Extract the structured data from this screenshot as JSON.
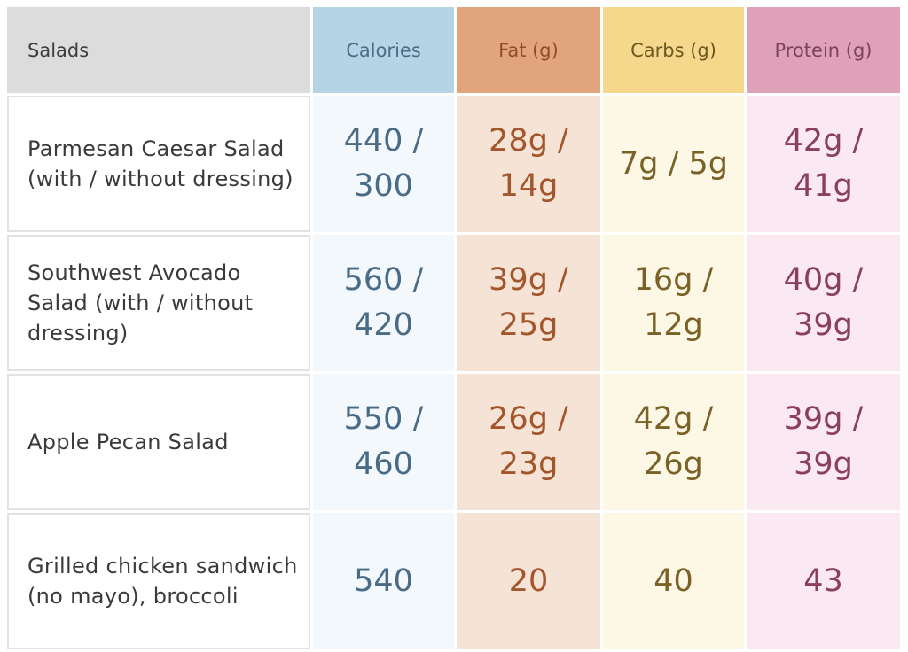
{
  "table": {
    "headers": {
      "name": "Salads",
      "calories": "Calories",
      "fat": "Fat (g)",
      "carbs": "Carbs (g)",
      "protein": "Protein (g)"
    },
    "rows": [
      {
        "name": "Parmesan Caesar Salad (with / without dressing)",
        "calories": "440 / 300",
        "fat": "28g / 14g",
        "carbs": "7g / 5g",
        "protein": "42g / 41g"
      },
      {
        "name": "Southwest Avocado Salad (with / without dressing)",
        "calories": "560 / 420",
        "fat": "39g / 25g",
        "carbs": "16g / 12g",
        "protein": "40g / 39g"
      },
      {
        "name": "Apple Pecan Salad",
        "calories": "550 / 460",
        "fat": "26g / 23g",
        "carbs": "42g / 26g",
        "protein": "39g / 39g"
      },
      {
        "name": "Grilled chicken sandwich (no mayo), broccoli",
        "calories": "540",
        "fat": "20",
        "carbs": "40",
        "protein": "43"
      }
    ]
  },
  "colors": {
    "calories_header": "#b5d5e7",
    "fat_header": "#e2a47d",
    "carbs_header": "#f5d88b",
    "protein_header": "#dfa1b8",
    "name_header": "#dcdcdc"
  }
}
